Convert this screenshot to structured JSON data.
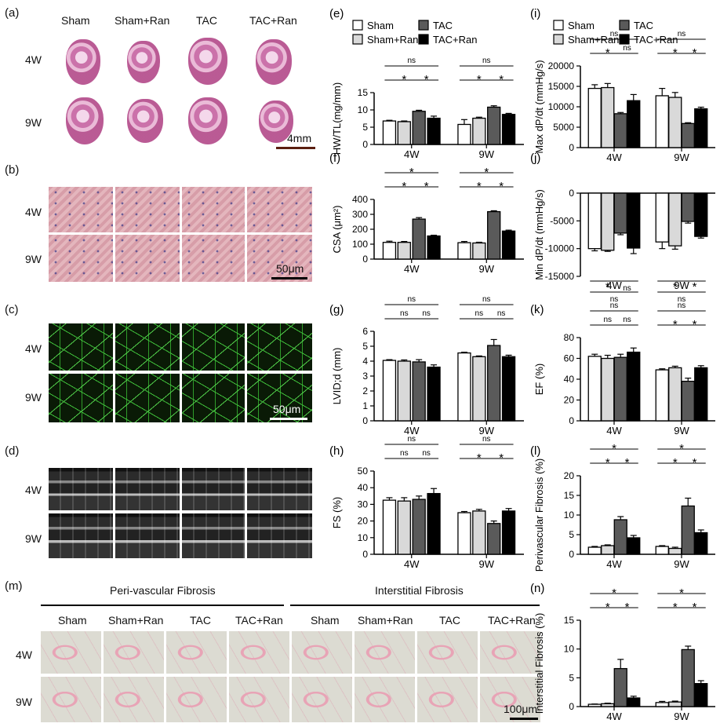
{
  "panel_labels": {
    "a": "(a)",
    "b": "(b)",
    "c": "(c)",
    "d": "(d)",
    "e": "(e)",
    "f": "(f)",
    "g": "(g)",
    "h": "(h)",
    "i": "(i)",
    "j": "(j)",
    "k": "(k)",
    "l": "(l)",
    "m": "(m)",
    "n": "(n)"
  },
  "groups": [
    "Sham",
    "Sham+Ran",
    "TAC",
    "TAC+Ran"
  ],
  "rows": [
    "4W",
    "9W"
  ],
  "scale_bars": {
    "a": "4mm",
    "b": "50μm",
    "c": "50μm",
    "m": "100μm"
  },
  "m_headers": {
    "peri": "Peri-vascular Fibrosis",
    "inter": "Interstitial Fibrosis"
  },
  "colors": {
    "Sham": "#ffffff",
    "Sham+Ran": "#d9d9d9",
    "TAC": "#5a5a5a",
    "TAC+Ran": "#000000"
  },
  "chart_data": [
    {
      "id": "e",
      "type": "bar",
      "ylabel": "HW/TL(mg/mm)",
      "ylim": [
        0,
        15
      ],
      "yticks": [
        0,
        5,
        10,
        15
      ],
      "categories": [
        "4W",
        "9W"
      ],
      "series": [
        {
          "name": "Sham",
          "values": [
            6.8,
            5.8
          ],
          "err": [
            0.2,
            1.4
          ]
        },
        {
          "name": "Sham+Ran",
          "values": [
            6.6,
            7.6
          ],
          "err": [
            0.2,
            0.3
          ]
        },
        {
          "name": "TAC",
          "values": [
            9.6,
            10.8
          ],
          "err": [
            0.3,
            0.4
          ]
        },
        {
          "name": "TAC+Ran",
          "values": [
            7.6,
            8.7
          ],
          "err": [
            0.6,
            0.3
          ]
        }
      ],
      "brackets": [
        [
          0,
          0,
          3,
          "ns"
        ],
        [
          0,
          0,
          2,
          "*"
        ],
        [
          0,
          2,
          3,
          "*"
        ],
        [
          1,
          0,
          3,
          "ns"
        ],
        [
          1,
          0,
          2,
          "*"
        ],
        [
          1,
          2,
          3,
          "*"
        ]
      ]
    },
    {
      "id": "f",
      "type": "bar",
      "ylabel": "CSA (μm²)",
      "ylim": [
        0,
        400
      ],
      "yticks": [
        0,
        100,
        200,
        300,
        400
      ],
      "categories": [
        "4W",
        "9W"
      ],
      "series": [
        {
          "name": "Sham",
          "values": [
            112,
            110
          ],
          "err": [
            8,
            8
          ]
        },
        {
          "name": "Sham+Ran",
          "values": [
            112,
            108
          ],
          "err": [
            6,
            5
          ]
        },
        {
          "name": "TAC",
          "values": [
            268,
            318
          ],
          "err": [
            10,
            6
          ]
        },
        {
          "name": "TAC+Ran",
          "values": [
            155,
            188
          ],
          "err": [
            5,
            6
          ]
        }
      ],
      "brackets": [
        [
          0,
          0,
          3,
          "*"
        ],
        [
          0,
          0,
          2,
          "*"
        ],
        [
          0,
          2,
          3,
          "*"
        ],
        [
          1,
          0,
          3,
          "*"
        ],
        [
          1,
          0,
          2,
          "*"
        ],
        [
          1,
          2,
          3,
          "*"
        ]
      ]
    },
    {
      "id": "g",
      "type": "bar",
      "ylabel": "LVID;d (mm)",
      "ylim": [
        0,
        6
      ],
      "yticks": [
        0,
        1,
        2,
        3,
        4,
        5,
        6
      ],
      "categories": [
        "4W",
        "9W"
      ],
      "series": [
        {
          "name": "Sham",
          "values": [
            4.05,
            4.55
          ],
          "err": [
            0.05,
            0.05
          ]
        },
        {
          "name": "Sham+Ran",
          "values": [
            4.0,
            4.3
          ],
          "err": [
            0.08,
            0.05
          ]
        },
        {
          "name": "TAC",
          "values": [
            3.95,
            5.05
          ],
          "err": [
            0.15,
            0.4
          ]
        },
        {
          "name": "TAC+Ran",
          "values": [
            3.6,
            4.3
          ],
          "err": [
            0.15,
            0.1
          ]
        }
      ],
      "brackets": [
        [
          0,
          0,
          3,
          "ns"
        ],
        [
          0,
          0,
          2,
          "ns"
        ],
        [
          0,
          2,
          3,
          "ns"
        ],
        [
          1,
          0,
          3,
          "ns"
        ],
        [
          1,
          0,
          2,
          "ns"
        ],
        [
          1,
          2,
          3,
          "ns"
        ]
      ]
    },
    {
      "id": "h",
      "type": "bar",
      "ylabel": "FS (%)",
      "ylim": [
        0,
        50
      ],
      "yticks": [
        0,
        10,
        20,
        30,
        40,
        50
      ],
      "categories": [
        "4W",
        "9W"
      ],
      "series": [
        {
          "name": "Sham",
          "values": [
            32.5,
            25
          ],
          "err": [
            1.5,
            0.7
          ]
        },
        {
          "name": "Sham+Ran",
          "values": [
            32,
            26
          ],
          "err": [
            2,
            1
          ]
        },
        {
          "name": "TAC",
          "values": [
            33,
            18.5
          ],
          "err": [
            2,
            1.5
          ]
        },
        {
          "name": "TAC+Ran",
          "values": [
            36.5,
            26
          ],
          "err": [
            3,
            1.5
          ]
        }
      ],
      "brackets": [
        [
          0,
          0,
          3,
          "ns"
        ],
        [
          0,
          0,
          2,
          "ns"
        ],
        [
          0,
          2,
          3,
          "ns"
        ],
        [
          1,
          0,
          3,
          "ns"
        ],
        [
          1,
          0,
          2,
          "*"
        ],
        [
          1,
          2,
          3,
          "*"
        ]
      ]
    },
    {
      "id": "i",
      "type": "bar",
      "ylabel": "Max dP/dt (mmHg/s)",
      "ylim": [
        0,
        20000
      ],
      "yticks": [
        0,
        5000,
        10000,
        15000,
        20000
      ],
      "categories": [
        "4W",
        "9W"
      ],
      "series": [
        {
          "name": "Sham",
          "values": [
            14500,
            12700
          ],
          "err": [
            900,
            1800
          ]
        },
        {
          "name": "Sham+Ran",
          "values": [
            14700,
            12300
          ],
          "err": [
            1000,
            1200
          ]
        },
        {
          "name": "TAC",
          "values": [
            8300,
            5900
          ],
          "err": [
            300,
            200
          ]
        },
        {
          "name": "TAC+Ran",
          "values": [
            11500,
            9500
          ],
          "err": [
            1500,
            400
          ]
        }
      ],
      "brackets": [
        [
          0,
          0,
          3,
          "ns"
        ],
        [
          0,
          0,
          2,
          "*"
        ],
        [
          0,
          2,
          3,
          "ns"
        ],
        [
          1,
          0,
          3,
          "ns"
        ],
        [
          1,
          0,
          2,
          "*"
        ],
        [
          1,
          2,
          3,
          "*"
        ]
      ]
    },
    {
      "id": "j",
      "type": "bar",
      "ylabel": "Min dP/dt (mmHg/s)",
      "ylim": [
        -15000,
        0
      ],
      "yticks": [
        0,
        -5000,
        -10000,
        -15000
      ],
      "categories": [
        "4W",
        "9W"
      ],
      "series": [
        {
          "name": "Sham",
          "values": [
            -10000,
            -8800
          ],
          "err": [
            400,
            1200
          ]
        },
        {
          "name": "Sham+Ran",
          "values": [
            -10300,
            -9500
          ],
          "err": [
            200,
            600
          ]
        },
        {
          "name": "TAC",
          "values": [
            -7200,
            -5100
          ],
          "err": [
            300,
            300
          ]
        },
        {
          "name": "TAC+Ran",
          "values": [
            -9900,
            -7800
          ],
          "err": [
            1000,
            300
          ]
        }
      ],
      "brackets": [
        [
          0,
          0,
          2,
          "*"
        ],
        [
          0,
          2,
          3,
          "ns"
        ],
        [
          0,
          0,
          3,
          "ns"
        ],
        [
          1,
          0,
          2,
          "*"
        ],
        [
          1,
          2,
          3,
          "*"
        ],
        [
          1,
          0,
          3,
          "ns"
        ]
      ]
    },
    {
      "id": "k",
      "type": "bar",
      "ylabel": "EF (%)",
      "ylim": [
        0,
        80
      ],
      "yticks": [
        0,
        20,
        40,
        60,
        80
      ],
      "categories": [
        "4W",
        "9W"
      ],
      "series": [
        {
          "name": "Sham",
          "values": [
            62,
            49
          ],
          "err": [
            2,
            1
          ]
        },
        {
          "name": "Sham+Ran",
          "values": [
            60,
            51
          ],
          "err": [
            3,
            1.5
          ]
        },
        {
          "name": "TAC",
          "values": [
            61,
            38
          ],
          "err": [
            3,
            3
          ]
        },
        {
          "name": "TAC+Ran",
          "values": [
            66,
            51
          ],
          "err": [
            4,
            2
          ]
        }
      ],
      "brackets": [
        [
          0,
          0,
          3,
          "ns"
        ],
        [
          0,
          0,
          2,
          "ns"
        ],
        [
          0,
          2,
          3,
          "ns"
        ],
        [
          1,
          0,
          3,
          "ns"
        ],
        [
          1,
          0,
          2,
          "*"
        ],
        [
          1,
          2,
          3,
          "*"
        ]
      ]
    },
    {
      "id": "l",
      "type": "bar",
      "ylabel": "Perivascular Fibrosis (%)",
      "ylim": [
        0,
        20
      ],
      "yticks": [
        0,
        5,
        10,
        15,
        20
      ],
      "categories": [
        "4W",
        "9W"
      ],
      "series": [
        {
          "name": "Sham",
          "values": [
            1.8,
            2.0
          ],
          "err": [
            0.2,
            0.2
          ]
        },
        {
          "name": "Sham+Ran",
          "values": [
            2.2,
            1.5
          ],
          "err": [
            0.2,
            0.3
          ]
        },
        {
          "name": "TAC",
          "values": [
            8.8,
            12.3
          ],
          "err": [
            0.8,
            2
          ]
        },
        {
          "name": "TAC+Ran",
          "values": [
            4.2,
            5.5
          ],
          "err": [
            0.6,
            0.7
          ]
        }
      ],
      "brackets": [
        [
          0,
          0,
          3,
          "*"
        ],
        [
          0,
          0,
          2,
          "*"
        ],
        [
          0,
          2,
          3,
          "*"
        ],
        [
          1,
          0,
          3,
          "*"
        ],
        [
          1,
          0,
          2,
          "*"
        ],
        [
          1,
          2,
          3,
          "*"
        ]
      ]
    },
    {
      "id": "n",
      "type": "bar",
      "ylabel": "Interstitial Fibrosis (%)",
      "ylim": [
        0,
        15
      ],
      "yticks": [
        0,
        5,
        10,
        15
      ],
      "categories": [
        "4W",
        "9W"
      ],
      "series": [
        {
          "name": "Sham",
          "values": [
            0.4,
            0.7
          ],
          "err": [
            0.05,
            0.2
          ]
        },
        {
          "name": "Sham+Ran",
          "values": [
            0.5,
            0.8
          ],
          "err": [
            0.1,
            0.15
          ]
        },
        {
          "name": "TAC",
          "values": [
            6.6,
            9.9
          ],
          "err": [
            1.6,
            0.6
          ]
        },
        {
          "name": "TAC+Ran",
          "values": [
            1.5,
            4.0
          ],
          "err": [
            0.3,
            0.5
          ]
        }
      ],
      "brackets": [
        [
          0,
          0,
          3,
          "*"
        ],
        [
          0,
          0,
          2,
          "*"
        ],
        [
          0,
          2,
          3,
          "*"
        ],
        [
          1,
          0,
          3,
          "*"
        ],
        [
          1,
          0,
          2,
          "*"
        ],
        [
          1,
          2,
          3,
          "*"
        ]
      ]
    }
  ]
}
